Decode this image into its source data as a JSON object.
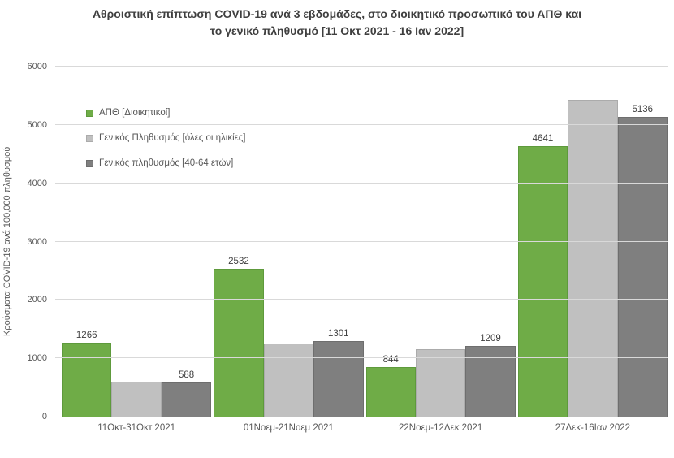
{
  "chart_data": {
    "type": "bar",
    "title": "Αθροιστική επίπτωση COVID-19 ανά 3 εβδομάδες, στο διοικητικό προσωπικό του ΑΠΘ και το γενικό πληθυσμό [11 Οκτ 2021 - 16 Ιαν 2022]",
    "title_lines": [
      "Αθροιστική επίπτωση COVID-19 ανά 3 εβδομάδες, στο διοικητικό προσωπικό του ΑΠΘ και",
      "το γενικό πληθυσμό [11 Οκτ 2021 - 16 Ιαν 2022]"
    ],
    "ylabel": "Κρούσματα COVID-19 ανά 100,000 πληθυσμού",
    "xlabel": "",
    "ylim": [
      0,
      6000
    ],
    "ytick_step": 1000,
    "yticks": [
      0,
      1000,
      2000,
      3000,
      4000,
      5000,
      6000
    ],
    "grid": true,
    "legend_position": "inside-top-left",
    "categories": [
      "11Οκτ-31Οκτ 2021",
      "01Νοεμ-21Νοεμ 2021",
      "22Νοεμ-12Δεκ 2021",
      "27Δεκ-16Ιαν 2022"
    ],
    "series": [
      {
        "name": "ΑΠΘ [Διοικητικοί]",
        "color": "#6FAC47",
        "border_color": "#5E9A3C",
        "values": [
          1266,
          2532,
          844,
          4641
        ],
        "data_labels": [
          "1266",
          "2532",
          "844",
          "4641"
        ]
      },
      {
        "name": "Γενικός Πληθυσμός [όλες οι ηλικίες]",
        "color": "#C0C0C0",
        "border_color": "#ABABAB",
        "values": [
          600,
          1260,
          1150,
          5430
        ],
        "data_labels": [
          "",
          "",
          "",
          ""
        ]
      },
      {
        "name": "Γενικός πληθυσμός [40-64 ετών]",
        "color": "#7F7F7F",
        "border_color": "#6E6E6E",
        "values": [
          588,
          1301,
          1209,
          5136
        ],
        "data_labels": [
          "588",
          "1301",
          "1209",
          "5136"
        ]
      }
    ],
    "colors": {
      "title_text": "#3F3F3F",
      "axis_text": "#595959",
      "data_label_text": "#404040",
      "gridline": "#D9D9D9",
      "axis_line": "#D2D2D2",
      "background": "#FFFFFF"
    }
  }
}
